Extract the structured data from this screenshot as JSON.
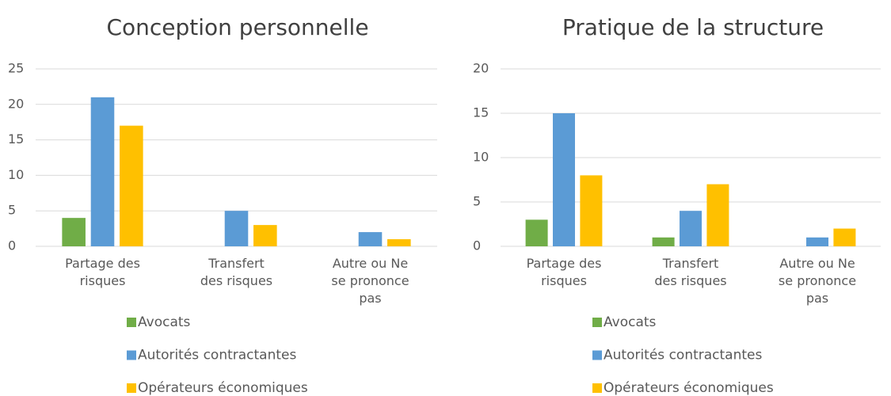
{
  "chart_data": [
    {
      "type": "bar",
      "title": "Conception personnelle",
      "categories": [
        "Partage des risques",
        "Transfert des risques",
        "Autre ou Ne se prononce pas"
      ],
      "series": [
        {
          "name": "Avocats",
          "color": "#70ad47",
          "values": [
            4,
            0,
            0
          ]
        },
        {
          "name": "Autorités contractantes",
          "color": "#5b9bd5",
          "values": [
            21,
            5,
            2
          ]
        },
        {
          "name": "Opérateurs économiques",
          "color": "#ffc000",
          "values": [
            17,
            3,
            1
          ]
        }
      ],
      "ylim": [
        0,
        25
      ],
      "yticks": [
        0,
        5,
        10,
        15,
        20,
        25
      ],
      "grid": true,
      "legend": "bottom"
    },
    {
      "type": "bar",
      "title": "Pratique de la structure",
      "categories": [
        "Partage des risques",
        "Transfert des risques",
        "Autre ou Ne se prononce pas"
      ],
      "series": [
        {
          "name": "Avocats",
          "color": "#70ad47",
          "values": [
            3,
            1,
            0
          ]
        },
        {
          "name": "Autorités contractantes",
          "color": "#5b9bd5",
          "values": [
            15,
            4,
            1
          ]
        },
        {
          "name": "Opérateurs économiques",
          "color": "#ffc000",
          "values": [
            8,
            7,
            2
          ]
        }
      ],
      "ylim": [
        0,
        20
      ],
      "yticks": [
        0,
        5,
        10,
        15,
        20
      ],
      "grid": true,
      "legend": "bottom"
    }
  ]
}
